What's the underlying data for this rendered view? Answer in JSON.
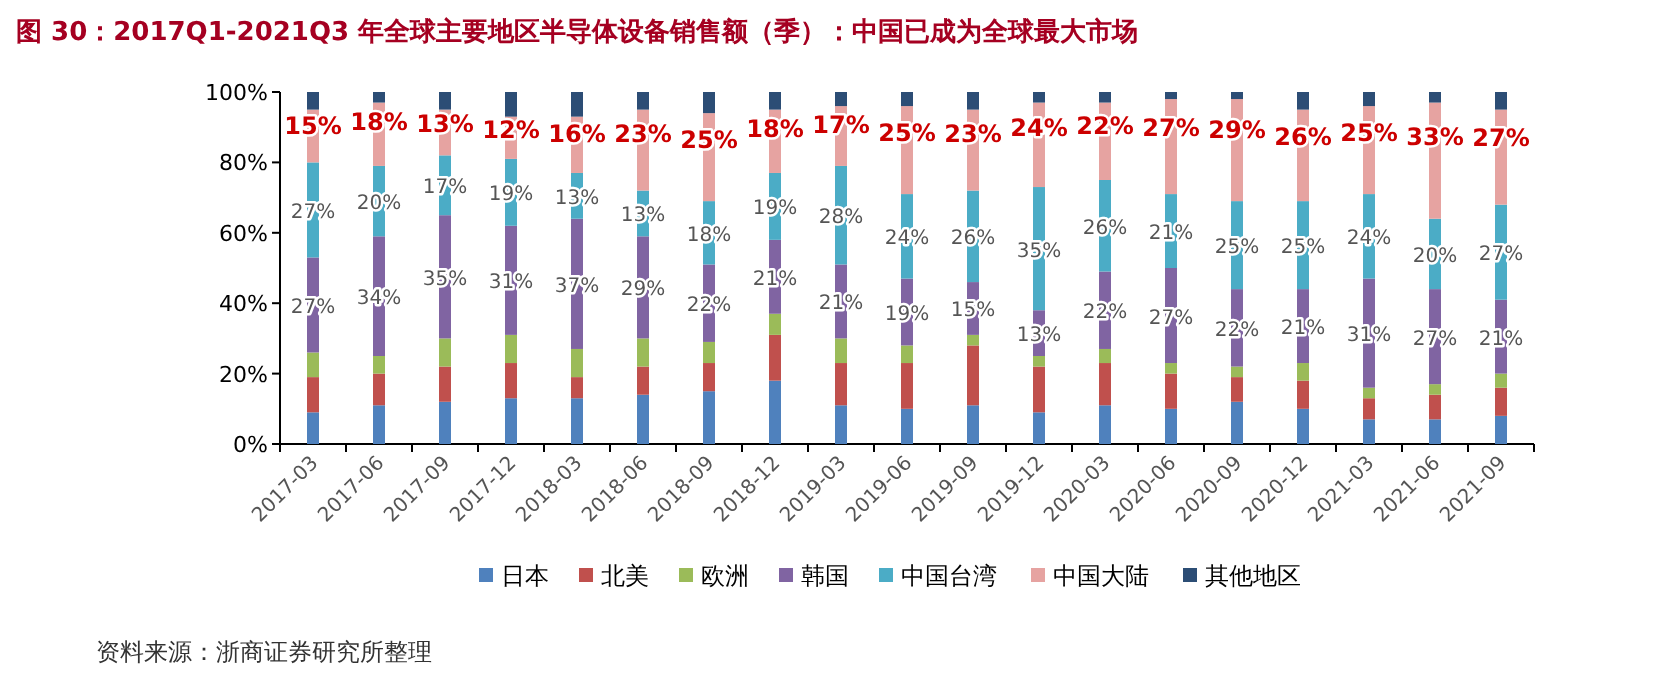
{
  "chart_data": {
    "type": "bar",
    "stacked": true,
    "title": "图 30：2017Q1-2021Q3 年全球主要地区半导体设备销售额（季）：中国已成为全球最大市场",
    "categories": [
      "2017-03",
      "2017-06",
      "2017-09",
      "2017-12",
      "2018-03",
      "2018-06",
      "2018-09",
      "2018-12",
      "2019-03",
      "2019-06",
      "2019-09",
      "2019-12",
      "2020-03",
      "2020-06",
      "2020-09",
      "2020-12",
      "2021-03",
      "2021-06",
      "2021-09"
    ],
    "ylim": [
      0,
      100
    ],
    "yticks": [
      {
        "value": 0,
        "label": "0%"
      },
      {
        "value": 20,
        "label": "20%"
      },
      {
        "value": 40,
        "label": "40%"
      },
      {
        "value": 60,
        "label": "60%"
      },
      {
        "value": 80,
        "label": "80%"
      },
      {
        "value": 100,
        "label": "100%"
      }
    ],
    "legend": "bottom",
    "grid": false,
    "series": [
      {
        "name": "日本",
        "color": "#4f81bd",
        "values": [
          9,
          11,
          12,
          13,
          13,
          14,
          15,
          18,
          11,
          10,
          11,
          9,
          11,
          10,
          12,
          10,
          7,
          7,
          8
        ]
      },
      {
        "name": "北美",
        "color": "#c0504d",
        "values": [
          10,
          9,
          10,
          10,
          6,
          8,
          8,
          13,
          12,
          13,
          17,
          13,
          12,
          10,
          7,
          8,
          6,
          7,
          8
        ]
      },
      {
        "name": "欧洲",
        "color": "#9bbb59",
        "values": [
          7,
          5,
          8,
          8,
          8,
          8,
          6,
          6,
          7,
          5,
          3,
          3,
          4,
          3,
          3,
          5,
          3,
          3,
          4
        ]
      },
      {
        "name": "韩国",
        "color": "#8064a2",
        "values": [
          27,
          34,
          35,
          31,
          37,
          29,
          22,
          21,
          21,
          19,
          15,
          13,
          22,
          27,
          22,
          21,
          31,
          27,
          21
        ],
        "value_labels": [
          "27%",
          "34%",
          "35%",
          "31%",
          "37%",
          "29%",
          "22%",
          "21%",
          "21%",
          "19%",
          "15%",
          "13%",
          "22%",
          "27%",
          "22%",
          "21%",
          "31%",
          "27%",
          "21%"
        ]
      },
      {
        "name": "中国台湾",
        "color": "#4bacc6",
        "values": [
          27,
          20,
          17,
          19,
          13,
          13,
          18,
          19,
          28,
          24,
          26,
          35,
          26,
          21,
          25,
          25,
          24,
          20,
          27
        ],
        "value_labels": [
          "27%",
          "20%",
          "17%",
          "19%",
          "13%",
          "13%",
          "18%",
          "19%",
          "28%",
          "24%",
          "26%",
          "35%",
          "26%",
          "21%",
          "25%",
          "25%",
          "24%",
          "20%",
          "27%"
        ]
      },
      {
        "name": "中国大陆",
        "color": "#e6a3a1",
        "values": [
          15,
          18,
          13,
          12,
          16,
          23,
          25,
          18,
          17,
          25,
          23,
          24,
          22,
          27,
          29,
          26,
          25,
          33,
          27
        ],
        "value_labels": [
          "15%",
          "18%",
          "13%",
          "12%",
          "16%",
          "23%",
          "25%",
          "18%",
          "17%",
          "25%",
          "23%",
          "24%",
          "22%",
          "27%",
          "29%",
          "26%",
          "25%",
          "33%",
          "27%"
        ]
      },
      {
        "name": "其他地区",
        "color": "#2c4d75",
        "values": [
          5,
          3,
          5,
          7,
          7,
          5,
          6,
          5,
          4,
          4,
          5,
          3,
          3,
          2,
          2,
          5,
          4,
          3,
          5
        ]
      }
    ],
    "annotations": [
      "资料来源：浙商证券研究所整理"
    ]
  }
}
